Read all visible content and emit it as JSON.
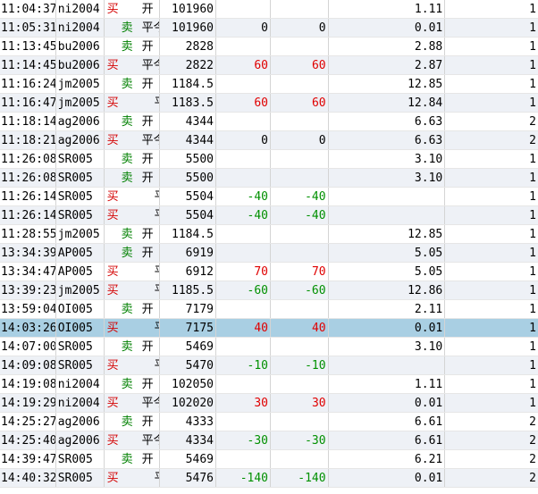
{
  "rows": [
    {
      "time": "11:04:37",
      "code": "ni2004",
      "side": "买",
      "side_type": "buy",
      "oc": "开",
      "oc_type": "open",
      "price": "101960",
      "a": "",
      "b": "",
      "c": "1.11",
      "d": "1",
      "pl_color": ""
    },
    {
      "time": "11:05:31",
      "code": "ni2004",
      "side": "卖",
      "side_type": "sell",
      "oc": "平今",
      "oc_type": "closetoday",
      "price": "101960",
      "a": "0",
      "b": "0",
      "c": "0.01",
      "d": "1",
      "pl_color": ""
    },
    {
      "time": "11:13:45",
      "code": "bu2006",
      "side": "卖",
      "side_type": "sell",
      "oc": "开",
      "oc_type": "open",
      "price": "2828",
      "a": "",
      "b": "",
      "c": "2.88",
      "d": "1",
      "pl_color": ""
    },
    {
      "time": "11:14:45",
      "code": "bu2006",
      "side": "买",
      "side_type": "buy",
      "oc": "平今",
      "oc_type": "closetoday",
      "price": "2822",
      "a": "60",
      "b": "60",
      "c": "2.87",
      "d": "1",
      "pl_color": "red"
    },
    {
      "time": "11:16:24",
      "code": "jm2005",
      "side": "卖",
      "side_type": "sell",
      "oc": "开",
      "oc_type": "open",
      "price": "1184.5",
      "a": "",
      "b": "",
      "c": "12.85",
      "d": "1",
      "pl_color": ""
    },
    {
      "time": "11:16:47",
      "code": "jm2005",
      "side": "买",
      "side_type": "buy",
      "oc": "平",
      "oc_type": "close",
      "price": "1183.5",
      "a": "60",
      "b": "60",
      "c": "12.84",
      "d": "1",
      "pl_color": "red"
    },
    {
      "time": "11:18:14",
      "code": "ag2006",
      "side": "卖",
      "side_type": "sell",
      "oc": "开",
      "oc_type": "open",
      "price": "4344",
      "a": "",
      "b": "",
      "c": "6.63",
      "d": "2",
      "pl_color": ""
    },
    {
      "time": "11:18:21",
      "code": "ag2006",
      "side": "买",
      "side_type": "buy",
      "oc": "平今",
      "oc_type": "closetoday",
      "price": "4344",
      "a": "0",
      "b": "0",
      "c": "6.63",
      "d": "2",
      "pl_color": ""
    },
    {
      "time": "11:26:08",
      "code": "SR005",
      "side": "卖",
      "side_type": "sell",
      "oc": "开",
      "oc_type": "open",
      "price": "5500",
      "a": "",
      "b": "",
      "c": "3.10",
      "d": "1",
      "pl_color": ""
    },
    {
      "time": "11:26:08",
      "code": "SR005",
      "side": "卖",
      "side_type": "sell",
      "oc": "开",
      "oc_type": "open",
      "price": "5500",
      "a": "",
      "b": "",
      "c": "3.10",
      "d": "1",
      "pl_color": ""
    },
    {
      "time": "11:26:14",
      "code": "SR005",
      "side": "买",
      "side_type": "buy",
      "oc": "平",
      "oc_type": "close",
      "price": "5504",
      "a": "-40",
      "b": "-40",
      "c": "",
      "d": "1",
      "pl_color": "green"
    },
    {
      "time": "11:26:14",
      "code": "SR005",
      "side": "买",
      "side_type": "buy",
      "oc": "平",
      "oc_type": "close",
      "price": "5504",
      "a": "-40",
      "b": "-40",
      "c": "",
      "d": "1",
      "pl_color": "green"
    },
    {
      "time": "11:28:55",
      "code": "jm2005",
      "side": "卖",
      "side_type": "sell",
      "oc": "开",
      "oc_type": "open",
      "price": "1184.5",
      "a": "",
      "b": "",
      "c": "12.85",
      "d": "1",
      "pl_color": ""
    },
    {
      "time": "13:34:39",
      "code": "AP005",
      "side": "卖",
      "side_type": "sell",
      "oc": "开",
      "oc_type": "open",
      "price": "6919",
      "a": "",
      "b": "",
      "c": "5.05",
      "d": "1",
      "pl_color": ""
    },
    {
      "time": "13:34:47",
      "code": "AP005",
      "side": "买",
      "side_type": "buy",
      "oc": "平",
      "oc_type": "close",
      "price": "6912",
      "a": "70",
      "b": "70",
      "c": "5.05",
      "d": "1",
      "pl_color": "red"
    },
    {
      "time": "13:39:23",
      "code": "jm2005",
      "side": "买",
      "side_type": "buy",
      "oc": "平",
      "oc_type": "close",
      "price": "1185.5",
      "a": "-60",
      "b": "-60",
      "c": "12.86",
      "d": "1",
      "pl_color": "green"
    },
    {
      "time": "13:59:04",
      "code": "OI005",
      "side": "卖",
      "side_type": "sell",
      "oc": "开",
      "oc_type": "open",
      "price": "7179",
      "a": "",
      "b": "",
      "c": "2.11",
      "d": "1",
      "pl_color": ""
    },
    {
      "time": "14:03:26",
      "code": "OI005",
      "side": "买",
      "side_type": "buy",
      "oc": "平",
      "oc_type": "close",
      "price": "7175",
      "a": "40",
      "b": "40",
      "c": "0.01",
      "d": "1",
      "pl_color": "red"
    },
    {
      "time": "14:07:00",
      "code": "SR005",
      "side": "卖",
      "side_type": "sell",
      "oc": "开",
      "oc_type": "open",
      "price": "5469",
      "a": "",
      "b": "",
      "c": "3.10",
      "d": "1",
      "pl_color": ""
    },
    {
      "time": "14:09:08",
      "code": "SR005",
      "side": "买",
      "side_type": "buy",
      "oc": "平",
      "oc_type": "close",
      "price": "5470",
      "a": "-10",
      "b": "-10",
      "c": "",
      "d": "1",
      "pl_color": "green"
    },
    {
      "time": "14:19:08",
      "code": "ni2004",
      "side": "卖",
      "side_type": "sell",
      "oc": "开",
      "oc_type": "open",
      "price": "102050",
      "a": "",
      "b": "",
      "c": "1.11",
      "d": "1",
      "pl_color": ""
    },
    {
      "time": "14:19:29",
      "code": "ni2004",
      "side": "买",
      "side_type": "buy",
      "oc": "平今",
      "oc_type": "closetoday",
      "price": "102020",
      "a": "30",
      "b": "30",
      "c": "0.01",
      "d": "1",
      "pl_color": "red"
    },
    {
      "time": "14:25:27",
      "code": "ag2006",
      "side": "卖",
      "side_type": "sell",
      "oc": "开",
      "oc_type": "open",
      "price": "4333",
      "a": "",
      "b": "",
      "c": "6.61",
      "d": "2",
      "pl_color": ""
    },
    {
      "time": "14:25:40",
      "code": "ag2006",
      "side": "买",
      "side_type": "buy",
      "oc": "平今",
      "oc_type": "closetoday",
      "price": "4334",
      "a": "-30",
      "b": "-30",
      "c": "6.61",
      "d": "2",
      "pl_color": "green"
    },
    {
      "time": "14:39:47",
      "code": "SR005",
      "side": "卖",
      "side_type": "sell",
      "oc": "开",
      "oc_type": "open",
      "price": "5469",
      "a": "",
      "b": "",
      "c": "6.21",
      "d": "2",
      "pl_color": ""
    },
    {
      "time": "14:40:32",
      "code": "SR005",
      "side": "买",
      "side_type": "buy",
      "oc": "平",
      "oc_type": "close",
      "price": "5476",
      "a": "-140",
      "b": "-140",
      "c": "0.01",
      "d": "2",
      "pl_color": "green"
    }
  ],
  "selected_row": 17,
  "colors": {
    "buy": "#d40000",
    "sell": "#008000",
    "profit": "#e00000",
    "loss": "#009000",
    "selected": "#a9cfe3"
  }
}
